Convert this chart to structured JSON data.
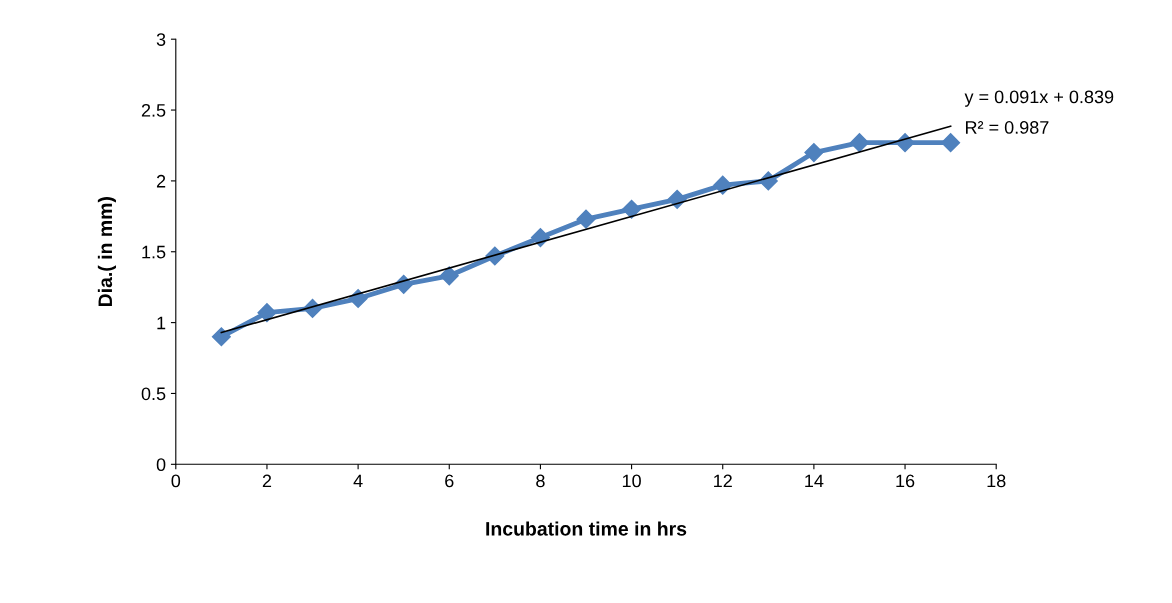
{
  "chart_data": {
    "type": "line",
    "xlabel": "Incubation time in hrs",
    "ylabel": "Dia.( in mm)",
    "x": [
      1,
      2,
      3,
      4,
      5,
      6,
      7,
      8,
      9,
      10,
      11,
      12,
      13,
      14,
      15,
      16,
      17
    ],
    "series": [
      {
        "color": "#4f81bd",
        "values": [
          0.9,
          1.07,
          1.1,
          1.17,
          1.27,
          1.33,
          1.47,
          1.6,
          1.73,
          1.8,
          1.87,
          1.97,
          2.0,
          2.2,
          2.27,
          2.27,
          2.27
        ],
        "marker": "diamond"
      },
      {
        "type": "line",
        "color": "#000000",
        "x": [
          1,
          17
        ],
        "values": [
          0.93,
          2.386
        ],
        "marker": "none"
      }
    ],
    "annotations": [
      {
        "text": "y = 0.091x + 0.839",
        "x": 17,
        "y": 2.386
      },
      {
        "text": "R² = 0.987",
        "x": 17,
        "y": 2.386
      }
    ],
    "xlim": [
      0,
      18
    ],
    "xticks": [
      0,
      2,
      4,
      6,
      8,
      10,
      12,
      14,
      16,
      18
    ],
    "ylim": [
      0,
      3
    ],
    "yticks": [
      0,
      0.5,
      1,
      1.5,
      2,
      2.5,
      3
    ],
    "grid": false,
    "legend": false
  }
}
